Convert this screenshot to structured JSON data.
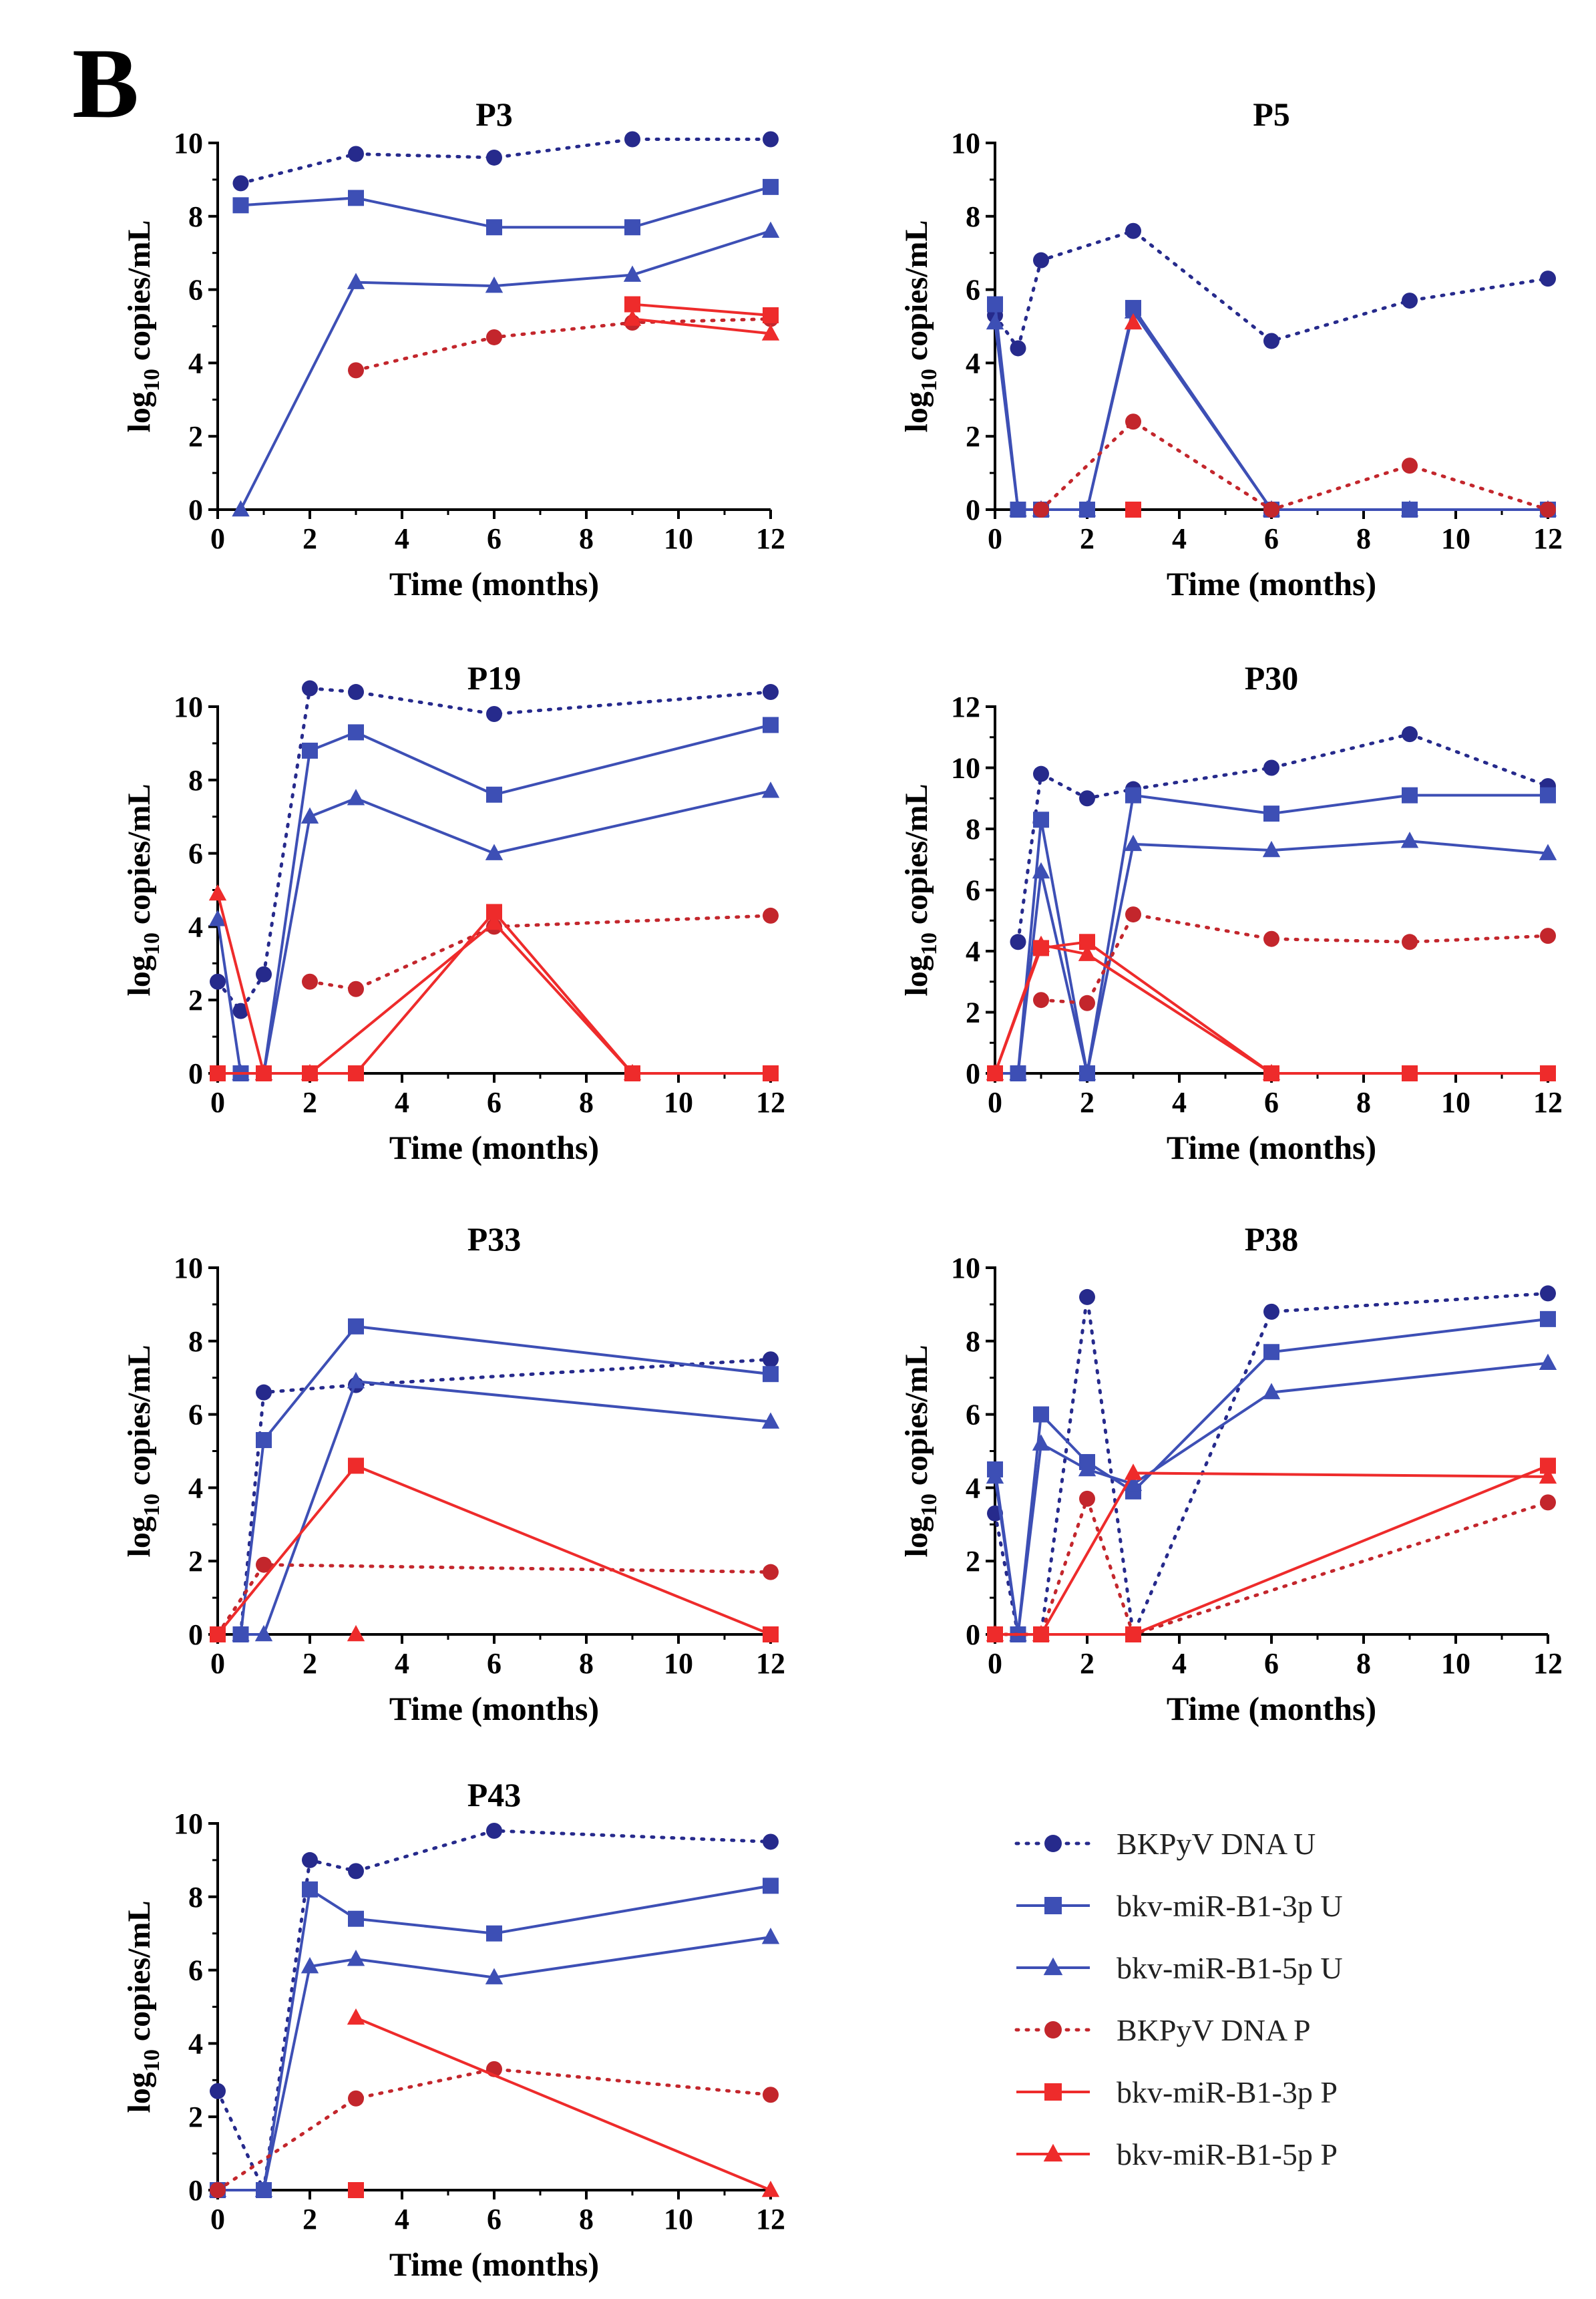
{
  "figure": {
    "panel_letter": "B",
    "colors": {
      "blue": "#3d4fb5",
      "navy": "#262a8c",
      "red": "#ee2b2b",
      "darkred": "#c3262c",
      "black": "#000000"
    }
  },
  "legend": {
    "items": [
      {
        "label": "BKPyV DNA U",
        "color": "#262a8c",
        "marker": "circle",
        "dash": "dotted"
      },
      {
        "label": "bkv-miR-B1-3p U",
        "color": "#3d4fb5",
        "marker": "square",
        "dash": "solid"
      },
      {
        "label": "bkv-miR-B1-5p U",
        "color": "#3d4fb5",
        "marker": "triangle",
        "dash": "solid"
      },
      {
        "label": "BKPyV DNA P",
        "color": "#c3262c",
        "marker": "circle",
        "dash": "dotted"
      },
      {
        "label": "bkv-miR-B1-3p P",
        "color": "#ee2b2b",
        "marker": "square",
        "dash": "solid"
      },
      {
        "label": "bkv-miR-B1-5p P",
        "color": "#ee2b2b",
        "marker": "triangle",
        "dash": "solid"
      }
    ]
  },
  "chart_data": [
    {
      "type": "line",
      "title": "P3",
      "xlabel": "Time (months)",
      "ylabel": "log10 copies/mL",
      "ylabel_base": "log",
      "ylabel_sub": "10",
      "ylabel_rest": " copies/mL",
      "xlim": [
        0,
        12
      ],
      "ylim": [
        0,
        10
      ],
      "xticks": [
        0,
        2,
        4,
        6,
        8,
        10,
        12
      ],
      "yticks": [
        0,
        2,
        4,
        6,
        8,
        10
      ],
      "series": [
        {
          "name": "BKPyV DNA U",
          "x": [
            0.5,
            3,
            6,
            9,
            12
          ],
          "y": [
            8.9,
            9.7,
            9.6,
            10.1,
            10.1
          ]
        },
        {
          "name": "bkv-miR-B1-3p U",
          "x": [
            0.5,
            3,
            6,
            9,
            12
          ],
          "y": [
            8.3,
            8.5,
            7.7,
            7.7,
            8.8
          ]
        },
        {
          "name": "bkv-miR-B1-5p U",
          "x": [
            0.5,
            3,
            6,
            9,
            12
          ],
          "y": [
            0,
            6.2,
            6.1,
            6.4,
            7.6
          ]
        },
        {
          "name": "BKPyV DNA P",
          "x": [
            3,
            6,
            9,
            12
          ],
          "y": [
            3.8,
            4.7,
            5.1,
            5.2
          ]
        },
        {
          "name": "bkv-miR-B1-3p P",
          "x": [
            9,
            12
          ],
          "y": [
            5.6,
            5.3
          ]
        },
        {
          "name": "bkv-miR-B1-5p P",
          "x": [
            9,
            12
          ],
          "y": [
            5.2,
            4.8
          ]
        }
      ]
    },
    {
      "type": "line",
      "title": "P5",
      "xlabel": "Time (months)",
      "ylabel": "log10 copies/mL",
      "ylabel_base": "log",
      "ylabel_sub": "10",
      "ylabel_rest": " copies/mL",
      "xlim": [
        0,
        12
      ],
      "ylim": [
        0,
        10
      ],
      "xticks": [
        0,
        2,
        4,
        6,
        8,
        10,
        12
      ],
      "yticks": [
        0,
        2,
        4,
        6,
        8,
        10
      ],
      "series": [
        {
          "name": "BKPyV DNA U",
          "x": [
            0,
            0.5,
            1,
            3,
            6,
            9,
            12
          ],
          "y": [
            5.3,
            4.4,
            6.8,
            7.6,
            4.6,
            5.7,
            6.3
          ]
        },
        {
          "name": "bkv-miR-B1-3p U",
          "x": [
            0,
            0.5,
            1,
            2,
            3,
            6,
            9,
            12
          ],
          "y": [
            5.6,
            0,
            0,
            0,
            5.5,
            0,
            0,
            0
          ]
        },
        {
          "name": "bkv-miR-B1-5p U",
          "x": [
            0,
            0.5,
            1,
            2,
            3,
            6,
            9,
            12
          ],
          "y": [
            5.1,
            0,
            0,
            0,
            5.4,
            0,
            0,
            0
          ]
        },
        {
          "name": "BKPyV DNA P",
          "x": [
            1,
            3,
            6,
            9,
            12
          ],
          "y": [
            0,
            2.4,
            0,
            1.2,
            0
          ]
        },
        {
          "name": "bkv-miR-B1-3p P",
          "x": [
            3
          ],
          "y": [
            0
          ]
        },
        {
          "name": "bkv-miR-B1-5p P",
          "x": [
            3
          ],
          "y": [
            5.1
          ]
        }
      ]
    },
    {
      "type": "line",
      "title": "P19",
      "xlabel": "Time (months)",
      "ylabel": "log10 copies/mL",
      "ylabel_base": "log",
      "ylabel_sub": "10",
      "ylabel_rest": " copies/mL",
      "xlim": [
        0,
        12
      ],
      "ylim": [
        0,
        10
      ],
      "xticks": [
        0,
        2,
        4,
        6,
        8,
        10,
        12
      ],
      "yticks": [
        0,
        2,
        4,
        6,
        8,
        10
      ],
      "series": [
        {
          "name": "BKPyV DNA U",
          "x": [
            0,
            0.5,
            1,
            2,
            3,
            6,
            12
          ],
          "y": [
            2.5,
            1.7,
            2.7,
            10.5,
            10.4,
            9.8,
            10.4
          ]
        },
        {
          "name": "bkv-miR-B1-3p U",
          "x": [
            0,
            0.5,
            1,
            2,
            3,
            6,
            12
          ],
          "y": [
            0,
            0,
            0,
            8.8,
            9.3,
            7.6,
            9.5
          ]
        },
        {
          "name": "bkv-miR-B1-5p U",
          "x": [
            0,
            0.5,
            1,
            2,
            3,
            6,
            12
          ],
          "y": [
            4.2,
            0,
            0,
            7.0,
            7.5,
            6.0,
            7.7
          ]
        },
        {
          "name": "BKPyV DNA P",
          "x": [
            2,
            3,
            6,
            12
          ],
          "y": [
            2.5,
            2.3,
            4.0,
            4.3
          ]
        },
        {
          "name": "bkv-miR-B1-3p P",
          "x": [
            0,
            1,
            2,
            3,
            6,
            9,
            12
          ],
          "y": [
            0,
            0,
            0,
            0,
            4.4,
            0,
            0
          ]
        },
        {
          "name": "bkv-miR-B1-5p P",
          "x": [
            0,
            1,
            2,
            6,
            9
          ],
          "y": [
            4.9,
            0,
            0,
            4.1,
            0
          ]
        }
      ]
    },
    {
      "type": "line",
      "title": "P30",
      "xlabel": "Time (months)",
      "ylabel": "log10 copies/mL",
      "ylabel_base": "log",
      "ylabel_sub": "10",
      "ylabel_rest": " copies/mL",
      "xlim": [
        0,
        12
      ],
      "ylim": [
        0,
        12
      ],
      "xticks": [
        0,
        2,
        4,
        6,
        8,
        10,
        12
      ],
      "yticks": [
        0,
        2,
        4,
        6,
        8,
        10,
        12
      ],
      "series": [
        {
          "name": "BKPyV DNA U",
          "x": [
            0.5,
            1,
            2,
            3,
            6,
            9,
            12
          ],
          "y": [
            4.3,
            9.8,
            9.0,
            9.3,
            10.0,
            11.1,
            9.4
          ]
        },
        {
          "name": "bkv-miR-B1-3p U",
          "x": [
            0,
            0.5,
            1,
            2,
            3,
            6,
            9,
            12
          ],
          "y": [
            0,
            0,
            8.3,
            0,
            9.1,
            8.5,
            9.1,
            9.1
          ]
        },
        {
          "name": "bkv-miR-B1-5p U",
          "x": [
            0,
            0.5,
            1,
            2,
            3,
            6,
            9,
            12
          ],
          "y": [
            0,
            0,
            6.6,
            0,
            7.5,
            7.3,
            7.6,
            7.2
          ]
        },
        {
          "name": "BKPyV DNA P",
          "x": [
            1,
            2,
            3,
            6,
            9,
            12
          ],
          "y": [
            2.4,
            2.3,
            5.2,
            4.4,
            4.3,
            4.5
          ]
        },
        {
          "name": "bkv-miR-B1-3p P",
          "x": [
            0,
            1,
            2,
            6,
            9,
            12
          ],
          "y": [
            0,
            4.1,
            4.3,
            0,
            0,
            0
          ]
        },
        {
          "name": "bkv-miR-B1-5p P",
          "x": [
            0,
            1,
            2,
            6
          ],
          "y": [
            0,
            4.2,
            3.9,
            0
          ]
        }
      ]
    },
    {
      "type": "line",
      "title": "P33",
      "xlabel": "Time (months)",
      "ylabel": "log10 copies/mL",
      "ylabel_base": "log",
      "ylabel_sub": "10",
      "ylabel_rest": " copies/mL",
      "xlim": [
        0,
        12
      ],
      "ylim": [
        0,
        10
      ],
      "xticks": [
        0,
        2,
        4,
        6,
        8,
        10,
        12
      ],
      "yticks": [
        0,
        2,
        4,
        6,
        8,
        10
      ],
      "series": [
        {
          "name": "BKPyV DNA U",
          "x": [
            0.5,
            1,
            3,
            12
          ],
          "y": [
            0,
            6.6,
            6.8,
            7.5
          ]
        },
        {
          "name": "bkv-miR-B1-3p U",
          "x": [
            0.5,
            1,
            3,
            12
          ],
          "y": [
            0,
            5.3,
            8.4,
            7.1
          ]
        },
        {
          "name": "bkv-miR-B1-5p U",
          "x": [
            0.5,
            1,
            3,
            12
          ],
          "y": [
            0,
            0,
            6.9,
            5.8
          ]
        },
        {
          "name": "BKPyV DNA P",
          "x": [
            0,
            1,
            12
          ],
          "y": [
            0,
            1.9,
            1.7
          ]
        },
        {
          "name": "bkv-miR-B1-3p P",
          "x": [
            0,
            3,
            12
          ],
          "y": [
            0,
            4.6,
            0
          ]
        },
        {
          "name": "bkv-miR-B1-5p P",
          "x": [
            3
          ],
          "y": [
            0
          ]
        }
      ]
    },
    {
      "type": "line",
      "title": "P38",
      "xlabel": "Time (months)",
      "ylabel": "log10 copies/mL",
      "ylabel_base": "log",
      "ylabel_sub": "10",
      "ylabel_rest": " copies/mL",
      "xlim": [
        0,
        12
      ],
      "ylim": [
        0,
        10
      ],
      "xticks": [
        0,
        2,
        4,
        6,
        8,
        10,
        12
      ],
      "yticks": [
        0,
        2,
        4,
        6,
        8,
        10
      ],
      "series": [
        {
          "name": "BKPyV DNA U",
          "x": [
            0,
            0.5,
            1,
            2,
            3,
            6,
            12
          ],
          "y": [
            3.3,
            0,
            0,
            9.2,
            0,
            8.8,
            9.3
          ]
        },
        {
          "name": "bkv-miR-B1-3p U",
          "x": [
            0,
            0.5,
            1,
            2,
            3,
            6,
            12
          ],
          "y": [
            4.5,
            0,
            6.0,
            4.7,
            3.9,
            7.7,
            8.6
          ]
        },
        {
          "name": "bkv-miR-B1-5p U",
          "x": [
            0,
            0.5,
            1,
            2,
            3,
            6,
            12
          ],
          "y": [
            4.3,
            0,
            5.2,
            4.5,
            4.1,
            6.6,
            7.4
          ]
        },
        {
          "name": "BKPyV DNA P",
          "x": [
            0,
            1,
            2,
            3,
            12
          ],
          "y": [
            0,
            0,
            3.7,
            0,
            3.6
          ]
        },
        {
          "name": "bkv-miR-B1-3p P",
          "x": [
            0,
            1,
            3,
            12
          ],
          "y": [
            0,
            0,
            0,
            4.6
          ]
        },
        {
          "name": "bkv-miR-B1-5p P",
          "x": [
            0,
            1,
            3,
            12
          ],
          "y": [
            0,
            0,
            4.4,
            4.3
          ]
        }
      ]
    },
    {
      "type": "line",
      "title": "P43",
      "xlabel": "Time (months)",
      "ylabel": "log10 copies/mL",
      "ylabel_base": "log",
      "ylabel_sub": "10",
      "ylabel_rest": " copies/mL",
      "xlim": [
        0,
        12
      ],
      "ylim": [
        0,
        10
      ],
      "xticks": [
        0,
        2,
        4,
        6,
        8,
        10,
        12
      ],
      "yticks": [
        0,
        2,
        4,
        6,
        8,
        10
      ],
      "series": [
        {
          "name": "BKPyV DNA U",
          "x": [
            0,
            1,
            2,
            3,
            6,
            12
          ],
          "y": [
            2.7,
            0,
            9.0,
            8.7,
            9.8,
            9.5
          ]
        },
        {
          "name": "bkv-miR-B1-3p U",
          "x": [
            0,
            1,
            2,
            3,
            6,
            12
          ],
          "y": [
            0,
            0,
            8.2,
            7.4,
            7.0,
            8.3
          ]
        },
        {
          "name": "bkv-miR-B1-5p U",
          "x": [
            0,
            1,
            2,
            3,
            6,
            12
          ],
          "y": [
            0,
            0,
            6.1,
            6.3,
            5.8,
            6.9
          ]
        },
        {
          "name": "BKPyV DNA P",
          "x": [
            0,
            3,
            6,
            12
          ],
          "y": [
            0,
            2.5,
            3.3,
            2.6
          ]
        },
        {
          "name": "bkv-miR-B1-3p P",
          "x": [
            3
          ],
          "y": [
            0
          ]
        },
        {
          "name": "bkv-miR-B1-5p P",
          "x": [
            3,
            12
          ],
          "y": [
            4.7,
            0
          ]
        }
      ]
    }
  ]
}
